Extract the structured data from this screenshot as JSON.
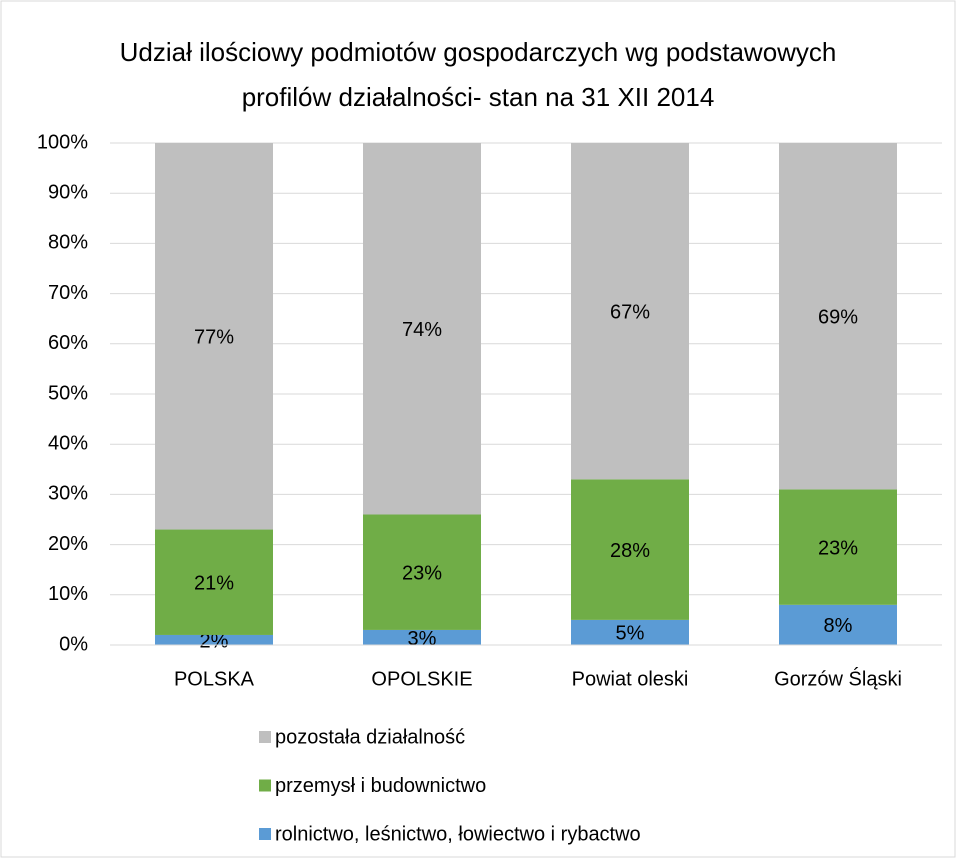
{
  "chart_data": {
    "type": "stacked_bar",
    "title": "Udział ilościowy podmiotów gospodarczych wg podstawowych profilów działalności- stan na 31 XII 2014",
    "categories": [
      "POLSKA",
      "OPOLSKIE",
      "Powiat oleski",
      "Gorzów Śląski"
    ],
    "series": [
      {
        "name": "rolnictwo, leśnictwo, łowiectwo i rybactwo",
        "color": "#5b9bd5",
        "values": [
          2,
          3,
          5,
          8
        ],
        "value_labels": [
          "2%",
          "3%",
          "5%",
          "8%"
        ]
      },
      {
        "name": "przemysł i budownictwo",
        "color": "#70ad47",
        "values": [
          21,
          23,
          28,
          23
        ],
        "value_labels": [
          "21%",
          "23%",
          "28%",
          "23%"
        ]
      },
      {
        "name": "pozostała działalność",
        "color": "#bfbfbf",
        "values": [
          77,
          74,
          67,
          69
        ],
        "value_labels": [
          "77%",
          "74%",
          "67%",
          "69%"
        ]
      }
    ],
    "ylim": [
      0,
      100
    ],
    "yticks": [
      {
        "value": 0,
        "label": "0%"
      },
      {
        "value": 10,
        "label": "10%"
      },
      {
        "value": 20,
        "label": "20%"
      },
      {
        "value": 30,
        "label": "30%"
      },
      {
        "value": 40,
        "label": "40%"
      },
      {
        "value": 50,
        "label": "50%"
      },
      {
        "value": 60,
        "label": "60%"
      },
      {
        "value": 70,
        "label": "70%"
      },
      {
        "value": 80,
        "label": "80%"
      },
      {
        "value": 90,
        "label": "90%"
      },
      {
        "value": 100,
        "label": "100%"
      }
    ],
    "grid": true,
    "legend": "bottom"
  }
}
